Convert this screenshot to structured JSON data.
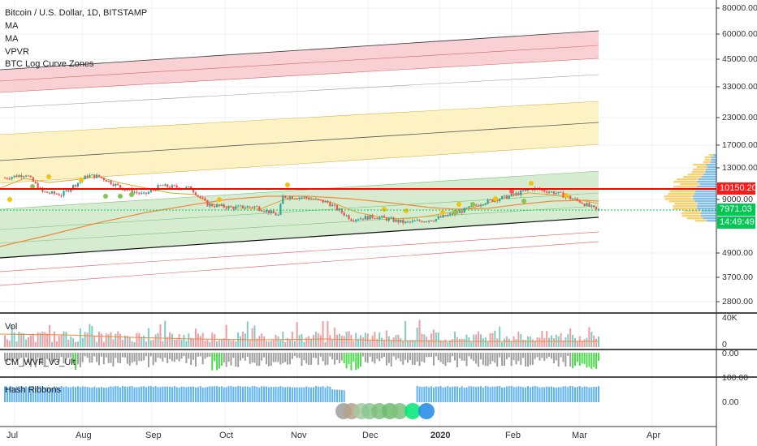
{
  "chart_data": [
    {
      "type": "line",
      "title": "Bitcoin / U.S. Dollar, 1D, BITSTAMP",
      "indicators": [
        "MA",
        "MA",
        "VPVR",
        "BTC Log Curve Zones"
      ],
      "price_axis_ticks": [
        "80000.00",
        "60000.00",
        "45000.00",
        "33000.00",
        "23000.00",
        "17000.00",
        "13000.00",
        "9000.00",
        "4900.00",
        "3700.00",
        "2800.00"
      ],
      "price_scale": "log",
      "ylim": [
        2400,
        95000
      ],
      "time_axis_ticks": [
        "Jul",
        "Aug",
        "Sep",
        "Oct",
        "Nov",
        "Dec",
        "2020",
        "Feb",
        "Mar",
        "Apr"
      ],
      "last_price": "7971.03",
      "resistance_line": "10150.20",
      "countdown": "14:49:49",
      "price_path": {
        "dates": [
          "Jul 1",
          "Jul 10",
          "Jul 17",
          "Jul 25",
          "Aug 5",
          "Aug 10",
          "Aug 20",
          "Aug 29",
          "Sep 5",
          "Sep 18",
          "Sep 25",
          "Oct 5",
          "Oct 15",
          "Oct 25",
          "Oct 27",
          "Nov 5",
          "Nov 15",
          "Nov 25",
          "Dec 5",
          "Dec 18",
          "Dec 31",
          "Jan 10",
          "Jan 20",
          "Feb 1",
          "Feb 10",
          "Feb 20",
          "Mar 1",
          "Mar 8"
        ],
        "close": [
          11500,
          12000,
          9800,
          9500,
          11800,
          11700,
          10200,
          9500,
          10500,
          10200,
          8500,
          8200,
          8300,
          7500,
          9300,
          9200,
          8700,
          7200,
          7400,
          6900,
          7200,
          7800,
          8700,
          9400,
          10200,
          9700,
          8800,
          7971
        ]
      },
      "colors": {
        "up": "#26a69a",
        "down": "#ef5350",
        "resistance": "#ff0000",
        "last_price": "#00c853",
        "zone_red": "#f8c9cc",
        "zone_yellow": "#fbf0b8",
        "zone_green": "#cfe9c9"
      }
    },
    {
      "type": "bar",
      "title": "Vol",
      "axis_ticks": [
        "40K",
        "0"
      ]
    },
    {
      "type": "bar",
      "title": "CM_WVF_V3_Ult",
      "axis_ticks": [
        "0.00"
      ]
    },
    {
      "type": "bar",
      "title": "Hash Ribbons",
      "axis_ticks": [
        "100.00",
        "0.00"
      ]
    }
  ]
}
